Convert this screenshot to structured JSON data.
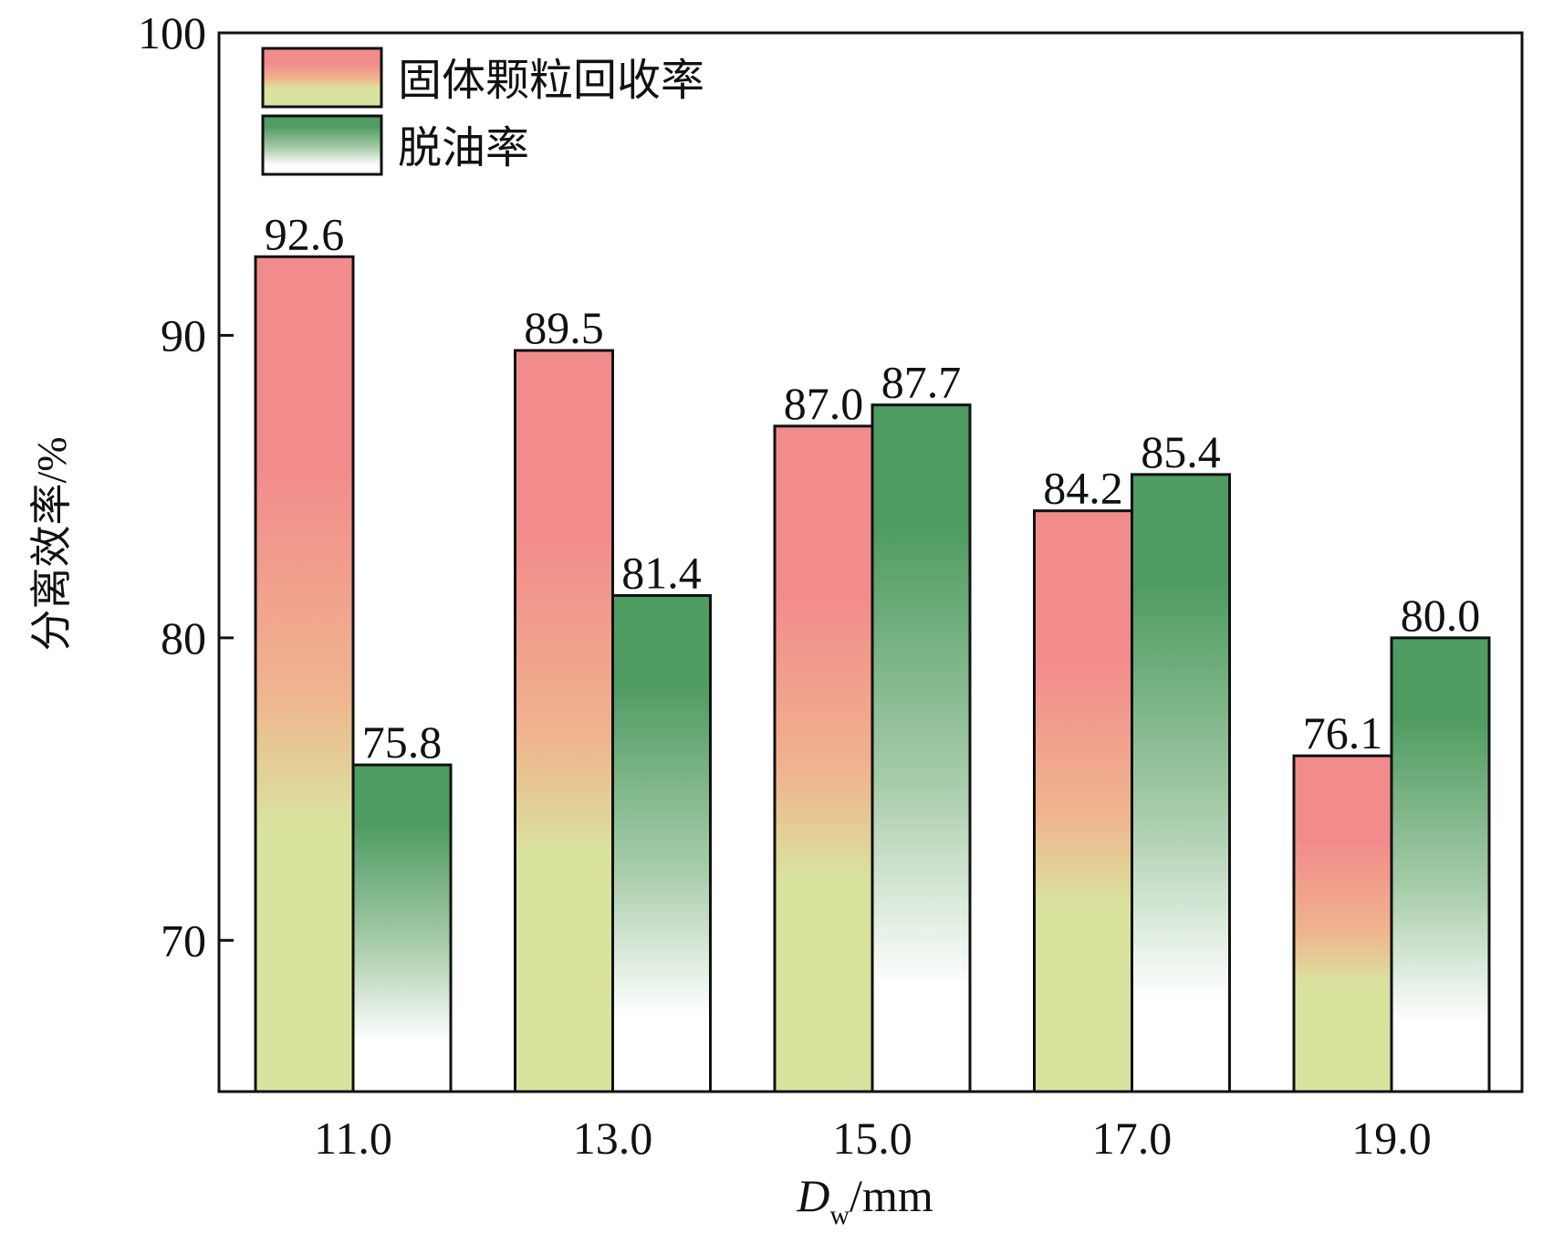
{
  "chart_data": {
    "type": "bar",
    "xlabel": {
      "main": "D",
      "sub": "w",
      "unit": "/mm"
    },
    "ylabel": "分离效率/%",
    "categories": [
      "11.0",
      "13.0",
      "15.0",
      "17.0",
      "19.0"
    ],
    "ylim": [
      65,
      100
    ],
    "yticks": [
      70,
      80,
      90,
      100
    ],
    "grid": false,
    "legend_position": "top-left",
    "series": [
      {
        "name": "固体颗粒回收率",
        "values": [
          92.6,
          89.5,
          87.0,
          84.2,
          76.1
        ],
        "labels": [
          "92.6",
          "89.5",
          "87.0",
          "84.2",
          "76.1"
        ],
        "colors": {
          "top": "#f28b8b",
          "middle": "#f0b48e",
          "bottom": "#d9e39e"
        }
      },
      {
        "name": "脱油率",
        "values": [
          75.8,
          81.4,
          87.7,
          85.4,
          80.0
        ],
        "labels": [
          "75.8",
          "81.4",
          "87.7",
          "85.4",
          "80.0"
        ],
        "colors": {
          "top": "#4f9c62",
          "middle": "#a7cca9",
          "bottom": "#ffffff"
        }
      }
    ]
  }
}
